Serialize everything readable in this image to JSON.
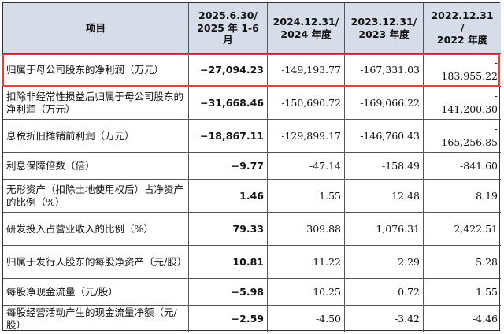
{
  "header": {
    "item": "项目",
    "col1_line1": "2025.6.30/",
    "col1_line2": "2025 年 1-6",
    "col1_line3": "月",
    "col2_line1": "2024.12.31/",
    "col2_line2": "2024 年度",
    "col3_line1": "2023.12.31/",
    "col3_line2": "2023 年度",
    "col4_line1": "2022.12.31",
    "col4_line2": "/",
    "col4_line3": "2022 年度"
  },
  "rows": [
    {
      "label": "归属于母公司股东的净利润（万元）",
      "v1": "−27,094.23",
      "v2": "-149,193.77",
      "v3": "-167,331.03",
      "v4a": "-",
      "v4b": "183,955.22"
    },
    {
      "label": "扣除非经常性损益后归属于母公司股东的净利润（万元）",
      "v1": "−31,668.46",
      "v2": "-150,690.72",
      "v3": "-169,066.22",
      "v4a": "-",
      "v4b": "141,200.30"
    },
    {
      "label": "息税折旧摊销前利润（万元）",
      "v1": "−18,867.11",
      "v2": "-129,899.17",
      "v3": "-146,760.43",
      "v4a": "-",
      "v4b": "165,256.85"
    },
    {
      "label": "利息保障倍数（倍）",
      "v1": "−9.77",
      "v2": "-47.14",
      "v3": "-158.49",
      "v4": "-841.60"
    },
    {
      "label": "无形资产（扣除土地使用权后）占净资产的比例（%）",
      "v1": "1.46",
      "v2": "1.55",
      "v3": "12.48",
      "v4": "8.19"
    },
    {
      "label": "研发投入占营业收入的比例（%）",
      "v1": "79.33",
      "v2": "309.88",
      "v3": "1,076.31",
      "v4": "2,422.51"
    },
    {
      "label": "归属于发行人股东的每股净资产（元/股）",
      "v1": "10.81",
      "v2": "11.22",
      "v3": "2.29",
      "v4": "5.28"
    },
    {
      "label": "每股净现金流量（元/股）",
      "v1": "−5.98",
      "v2": "10.25",
      "v3": "0.72",
      "v4": "1.55"
    },
    {
      "label": "每股经营活动产生的现金流量净额（元/股）",
      "v1": "−2.59",
      "v2": "-4.50",
      "v3": "-3.42",
      "v4": "-4.46"
    }
  ],
  "colors": {
    "header_bg": "#d6dde8",
    "highlight": "#e0443a"
  }
}
